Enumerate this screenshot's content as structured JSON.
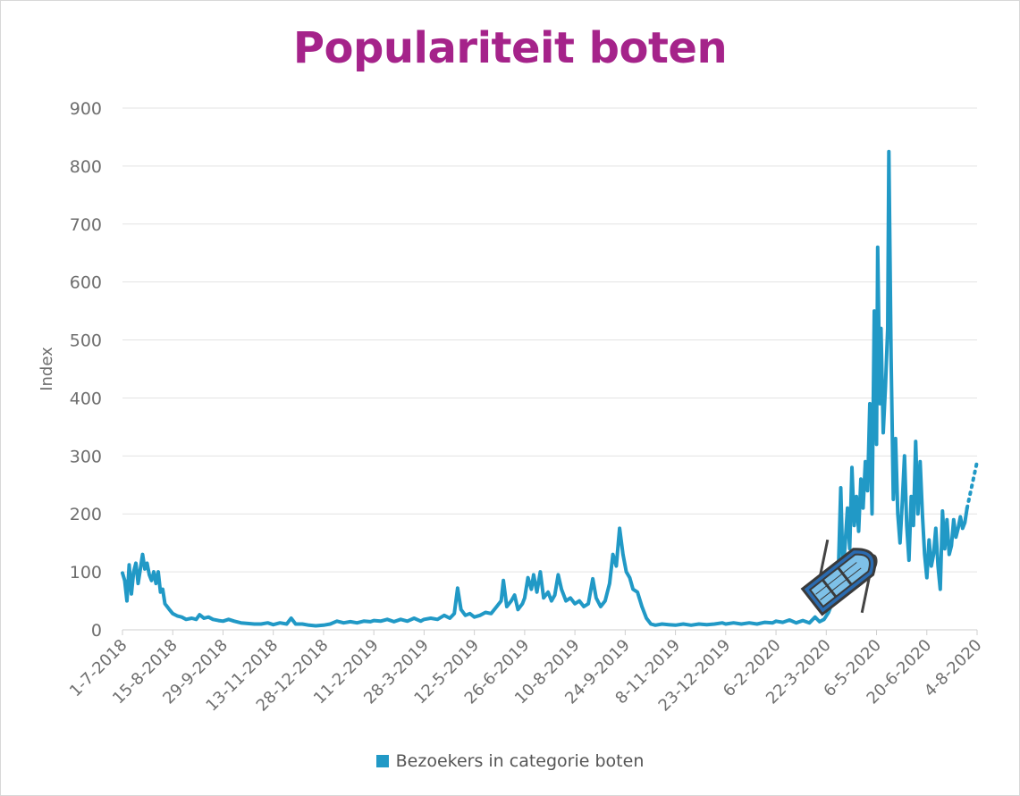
{
  "title": "Populariteit boten",
  "colors": {
    "title": "#a5238a",
    "series": "#2199c6",
    "grid": "#e3e3e3",
    "text": "#6e6e6e"
  },
  "legend": {
    "label": "Bezoekers in categorie boten",
    "icon": "blue-square"
  },
  "decoration": {
    "icon": "rowboat-icon"
  },
  "chart_data": {
    "type": "line",
    "title": "Populariteit boten",
    "ylabel": "Index",
    "xlabel": "",
    "ylim": [
      0,
      900
    ],
    "yticks": [
      0,
      100,
      200,
      300,
      400,
      500,
      600,
      700,
      800,
      900
    ],
    "xlim": [
      "2018-07-01",
      "2020-08-04"
    ],
    "xtick_labels": [
      "1-7-2018",
      "15-8-2018",
      "29-9-2018",
      "13-11-2018",
      "28-12-2018",
      "11-2-2019",
      "28-3-2019",
      "12-5-2019",
      "26-6-2019",
      "10-8-2019",
      "24-9-2019",
      "8-11-2019",
      "23-12-2019",
      "6-2-2020",
      "22-3-2020",
      "6-5-2020",
      "20-6-2020",
      "4-8-2020"
    ],
    "grid": "horizontal",
    "legend_position": "bottom",
    "series": [
      {
        "name": "Bezoekers in categorie boten",
        "dashed_tail": true,
        "points": [
          [
            "2018-07-01",
            98
          ],
          [
            "2018-07-03",
            85
          ],
          [
            "2018-07-05",
            50
          ],
          [
            "2018-07-07",
            112
          ],
          [
            "2018-07-09",
            62
          ],
          [
            "2018-07-11",
            100
          ],
          [
            "2018-07-13",
            115
          ],
          [
            "2018-07-15",
            80
          ],
          [
            "2018-07-17",
            105
          ],
          [
            "2018-07-19",
            130
          ],
          [
            "2018-07-21",
            105
          ],
          [
            "2018-07-23",
            115
          ],
          [
            "2018-07-25",
            95
          ],
          [
            "2018-07-27",
            85
          ],
          [
            "2018-07-29",
            100
          ],
          [
            "2018-07-31",
            80
          ],
          [
            "2018-08-02",
            100
          ],
          [
            "2018-08-04",
            65
          ],
          [
            "2018-08-06",
            70
          ],
          [
            "2018-08-08",
            45
          ],
          [
            "2018-08-10",
            40
          ],
          [
            "2018-08-12",
            35
          ],
          [
            "2018-08-15",
            28
          ],
          [
            "2018-08-19",
            24
          ],
          [
            "2018-08-23",
            22
          ],
          [
            "2018-08-27",
            18
          ],
          [
            "2018-09-01",
            20
          ],
          [
            "2018-09-05",
            18
          ],
          [
            "2018-09-08",
            26
          ],
          [
            "2018-09-12",
            20
          ],
          [
            "2018-09-16",
            22
          ],
          [
            "2018-09-20",
            18
          ],
          [
            "2018-09-25",
            16
          ],
          [
            "2018-09-29",
            15
          ],
          [
            "2018-10-04",
            18
          ],
          [
            "2018-10-09",
            15
          ],
          [
            "2018-10-15",
            12
          ],
          [
            "2018-10-21",
            11
          ],
          [
            "2018-10-27",
            10
          ],
          [
            "2018-11-02",
            10
          ],
          [
            "2018-11-08",
            12
          ],
          [
            "2018-11-13",
            9
          ],
          [
            "2018-11-19",
            12
          ],
          [
            "2018-11-25",
            10
          ],
          [
            "2018-11-29",
            20
          ],
          [
            "2018-12-03",
            10
          ],
          [
            "2018-12-09",
            10
          ],
          [
            "2018-12-15",
            8
          ],
          [
            "2018-12-21",
            7
          ],
          [
            "2018-12-28",
            8
          ],
          [
            "2019-01-03",
            10
          ],
          [
            "2019-01-09",
            15
          ],
          [
            "2019-01-15",
            12
          ],
          [
            "2019-01-21",
            14
          ],
          [
            "2019-01-27",
            12
          ],
          [
            "2019-02-02",
            15
          ],
          [
            "2019-02-08",
            14
          ],
          [
            "2019-02-11",
            16
          ],
          [
            "2019-02-17",
            15
          ],
          [
            "2019-02-23",
            18
          ],
          [
            "2019-03-01",
            14
          ],
          [
            "2019-03-07",
            18
          ],
          [
            "2019-03-13",
            15
          ],
          [
            "2019-03-19",
            20
          ],
          [
            "2019-03-25",
            15
          ],
          [
            "2019-03-28",
            18
          ],
          [
            "2019-04-03",
            20
          ],
          [
            "2019-04-09",
            18
          ],
          [
            "2019-04-15",
            25
          ],
          [
            "2019-04-20",
            20
          ],
          [
            "2019-04-24",
            28
          ],
          [
            "2019-04-27",
            72
          ],
          [
            "2019-04-30",
            35
          ],
          [
            "2019-05-04",
            25
          ],
          [
            "2019-05-08",
            28
          ],
          [
            "2019-05-12",
            22
          ],
          [
            "2019-05-17",
            25
          ],
          [
            "2019-05-22",
            30
          ],
          [
            "2019-05-27",
            28
          ],
          [
            "2019-06-01",
            40
          ],
          [
            "2019-06-05",
            50
          ],
          [
            "2019-06-07",
            85
          ],
          [
            "2019-06-10",
            40
          ],
          [
            "2019-06-14",
            50
          ],
          [
            "2019-06-17",
            60
          ],
          [
            "2019-06-20",
            35
          ],
          [
            "2019-06-24",
            45
          ],
          [
            "2019-06-26",
            55
          ],
          [
            "2019-06-29",
            90
          ],
          [
            "2019-07-02",
            70
          ],
          [
            "2019-07-04",
            95
          ],
          [
            "2019-07-07",
            65
          ],
          [
            "2019-07-10",
            100
          ],
          [
            "2019-07-13",
            55
          ],
          [
            "2019-07-17",
            65
          ],
          [
            "2019-07-20",
            50
          ],
          [
            "2019-07-23",
            60
          ],
          [
            "2019-07-26",
            95
          ],
          [
            "2019-07-29",
            70
          ],
          [
            "2019-08-02",
            50
          ],
          [
            "2019-08-06",
            55
          ],
          [
            "2019-08-10",
            45
          ],
          [
            "2019-08-14",
            50
          ],
          [
            "2019-08-18",
            40
          ],
          [
            "2019-08-22",
            45
          ],
          [
            "2019-08-26",
            88
          ],
          [
            "2019-08-29",
            55
          ],
          [
            "2019-09-02",
            40
          ],
          [
            "2019-09-06",
            50
          ],
          [
            "2019-09-10",
            80
          ],
          [
            "2019-09-13",
            130
          ],
          [
            "2019-09-16",
            110
          ],
          [
            "2019-09-19",
            175
          ],
          [
            "2019-09-22",
            130
          ],
          [
            "2019-09-25",
            100
          ],
          [
            "2019-09-28",
            90
          ],
          [
            "2019-10-01",
            70
          ],
          [
            "2019-10-05",
            65
          ],
          [
            "2019-10-09",
            40
          ],
          [
            "2019-10-13",
            20
          ],
          [
            "2019-10-17",
            10
          ],
          [
            "2019-10-21",
            8
          ],
          [
            "2019-10-27",
            10
          ],
          [
            "2019-11-02",
            9
          ],
          [
            "2019-11-08",
            8
          ],
          [
            "2019-11-15",
            10
          ],
          [
            "2019-11-22",
            8
          ],
          [
            "2019-11-29",
            10
          ],
          [
            "2019-12-06",
            9
          ],
          [
            "2019-12-13",
            10
          ],
          [
            "2019-12-20",
            12
          ],
          [
            "2019-12-23",
            10
          ],
          [
            "2019-12-30",
            12
          ],
          [
            "2020-01-06",
            10
          ],
          [
            "2020-01-13",
            12
          ],
          [
            "2020-01-20",
            10
          ],
          [
            "2020-01-27",
            13
          ],
          [
            "2020-02-03",
            12
          ],
          [
            "2020-02-06",
            15
          ],
          [
            "2020-02-12",
            13
          ],
          [
            "2020-02-18",
            17
          ],
          [
            "2020-02-24",
            12
          ],
          [
            "2020-03-01",
            16
          ],
          [
            "2020-03-07",
            12
          ],
          [
            "2020-03-12",
            22
          ],
          [
            "2020-03-16",
            14
          ],
          [
            "2020-03-20",
            18
          ],
          [
            "2020-03-24",
            30
          ],
          [
            "2020-03-27",
            45
          ],
          [
            "2020-03-30",
            60
          ],
          [
            "2020-04-02",
            110
          ],
          [
            "2020-04-04",
            245
          ],
          [
            "2020-04-06",
            100
          ],
          [
            "2020-04-08",
            150
          ],
          [
            "2020-04-10",
            210
          ],
          [
            "2020-04-12",
            140
          ],
          [
            "2020-04-14",
            280
          ],
          [
            "2020-04-16",
            180
          ],
          [
            "2020-04-18",
            230
          ],
          [
            "2020-04-20",
            170
          ],
          [
            "2020-04-22",
            260
          ],
          [
            "2020-04-24",
            210
          ],
          [
            "2020-04-26",
            290
          ],
          [
            "2020-04-28",
            240
          ],
          [
            "2020-04-30",
            390
          ],
          [
            "2020-05-02",
            200
          ],
          [
            "2020-05-04",
            550
          ],
          [
            "2020-05-06",
            320
          ],
          [
            "2020-05-07",
            660
          ],
          [
            "2020-05-09",
            390
          ],
          [
            "2020-05-10",
            520
          ],
          [
            "2020-05-12",
            340
          ],
          [
            "2020-05-14",
            420
          ],
          [
            "2020-05-16",
            520
          ],
          [
            "2020-05-17",
            825
          ],
          [
            "2020-05-19",
            470
          ],
          [
            "2020-05-21",
            225
          ],
          [
            "2020-05-23",
            330
          ],
          [
            "2020-05-25",
            200
          ],
          [
            "2020-05-27",
            150
          ],
          [
            "2020-05-29",
            220
          ],
          [
            "2020-05-31",
            300
          ],
          [
            "2020-06-02",
            180
          ],
          [
            "2020-06-04",
            120
          ],
          [
            "2020-06-06",
            230
          ],
          [
            "2020-06-08",
            180
          ],
          [
            "2020-06-10",
            325
          ],
          [
            "2020-06-12",
            200
          ],
          [
            "2020-06-14",
            290
          ],
          [
            "2020-06-16",
            200
          ],
          [
            "2020-06-18",
            130
          ],
          [
            "2020-06-20",
            90
          ],
          [
            "2020-06-22",
            155
          ],
          [
            "2020-06-24",
            110
          ],
          [
            "2020-06-26",
            130
          ],
          [
            "2020-06-28",
            175
          ],
          [
            "2020-06-30",
            110
          ],
          [
            "2020-07-02",
            70
          ],
          [
            "2020-07-04",
            205
          ],
          [
            "2020-07-06",
            140
          ],
          [
            "2020-07-08",
            190
          ],
          [
            "2020-07-10",
            130
          ],
          [
            "2020-07-12",
            145
          ],
          [
            "2020-07-14",
            190
          ],
          [
            "2020-07-16",
            160
          ],
          [
            "2020-07-18",
            175
          ],
          [
            "2020-07-20",
            195
          ],
          [
            "2020-07-22",
            175
          ],
          [
            "2020-07-24",
            185
          ],
          [
            "2020-07-26",
            210
          ],
          [
            "2020-08-04",
            290
          ]
        ]
      }
    ]
  }
}
